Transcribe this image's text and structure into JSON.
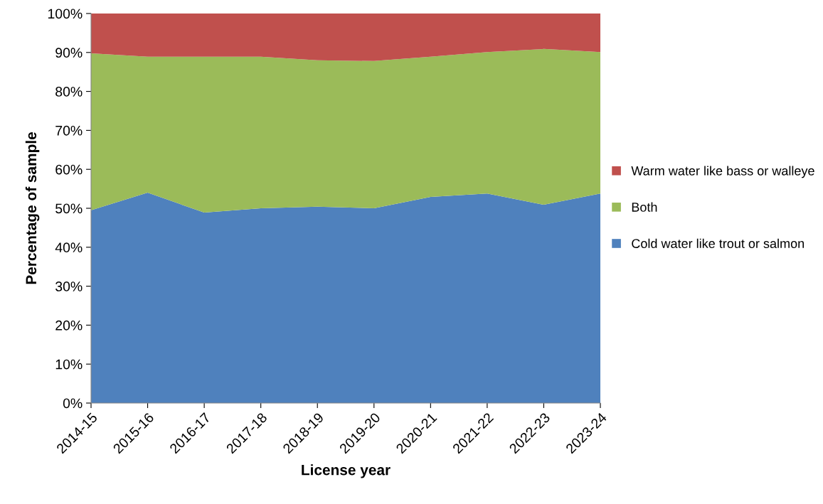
{
  "chart_data": {
    "type": "area",
    "stacked": true,
    "xlabel": "License year",
    "ylabel": "Percentage of sample",
    "categories": [
      "2014-15",
      "2015-16",
      "2016-17",
      "2017-18",
      "2018-19",
      "2019-20",
      "2020-21",
      "2021-22",
      "2022-23",
      "2023-24"
    ],
    "series": [
      {
        "name": "Cold water like trout or salmon",
        "color": "#4f81bd",
        "values": [
          49.5,
          54,
          48.9,
          50,
          50.4,
          50,
          52.9,
          53.8,
          50.9,
          53.8
        ]
      },
      {
        "name": "Both",
        "color": "#9bbb59",
        "values": [
          40.3,
          34.9,
          40,
          38.9,
          37.6,
          37.8,
          36,
          36.3,
          40,
          36.3
        ]
      },
      {
        "name": "Warm water like bass or walleye",
        "color": "#c0504d",
        "values": [
          10.2,
          11.1,
          11.1,
          11.1,
          12,
          12.2,
          11.1,
          9.9,
          9.1,
          9.9
        ]
      }
    ],
    "ylim": [
      0,
      100
    ],
    "yticks": [
      {
        "value": 0,
        "label": "0%"
      },
      {
        "value": 10,
        "label": "10%"
      },
      {
        "value": 20,
        "label": "20%"
      },
      {
        "value": 30,
        "label": "30%"
      },
      {
        "value": 40,
        "label": "40%"
      },
      {
        "value": 50,
        "label": "50%"
      },
      {
        "value": 60,
        "label": "60%"
      },
      {
        "value": 70,
        "label": "70%"
      },
      {
        "value": 80,
        "label": "80%"
      },
      {
        "value": 90,
        "label": "90%"
      },
      {
        "value": 100,
        "label": "100%"
      }
    ],
    "grid": false,
    "legend": "right"
  }
}
